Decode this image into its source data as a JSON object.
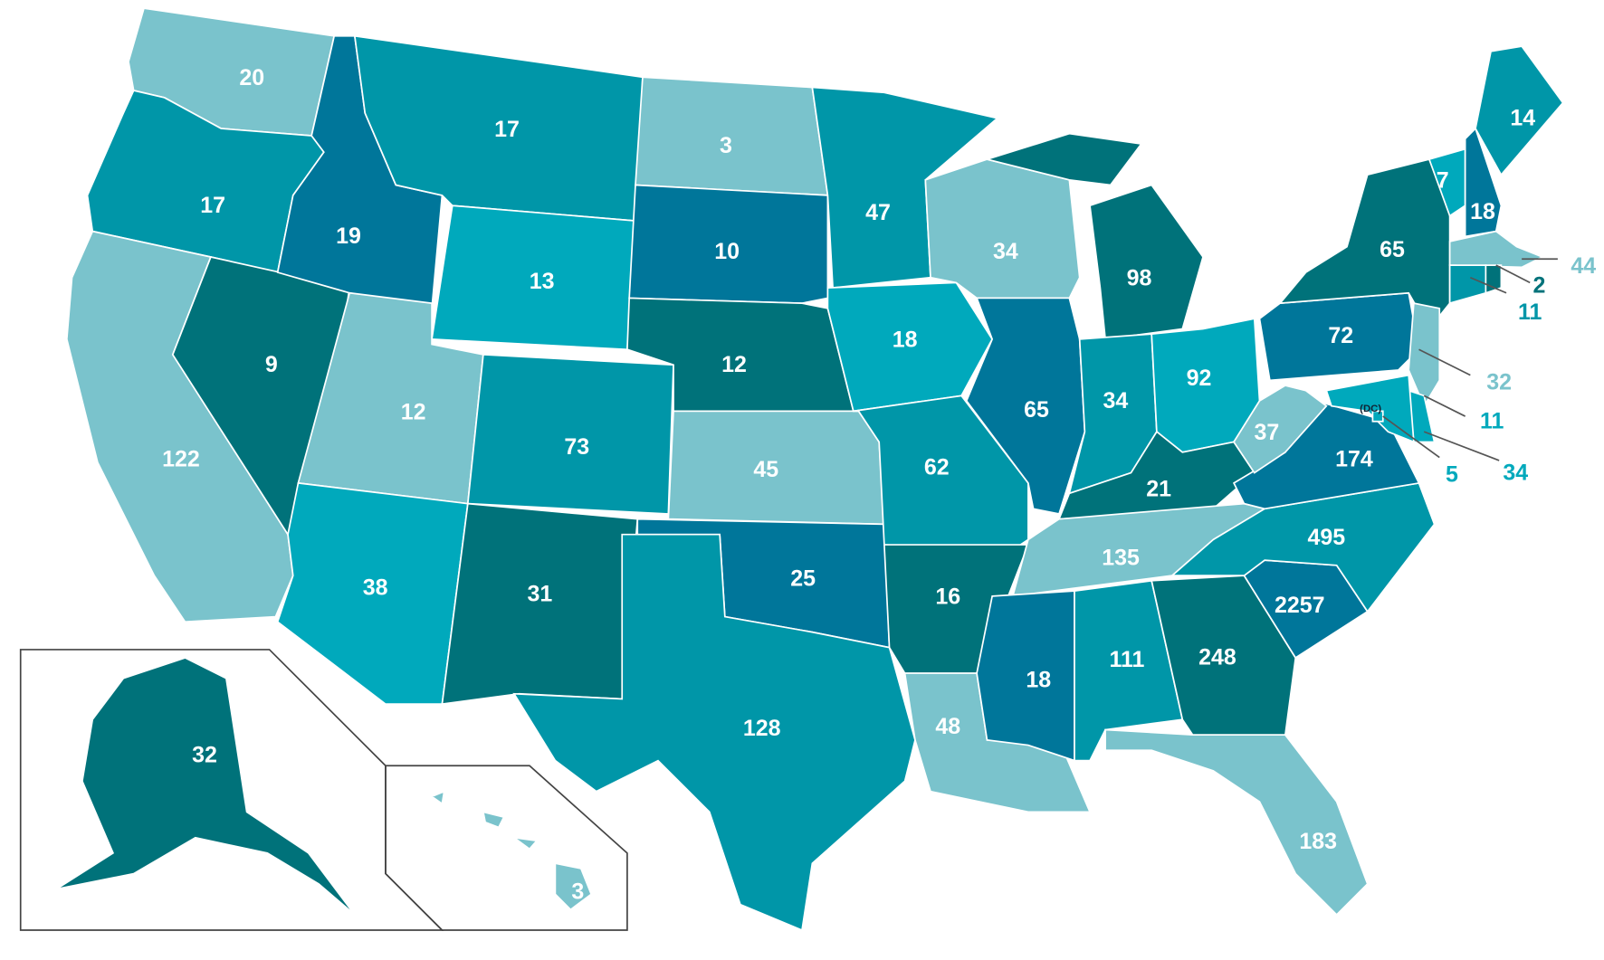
{
  "regions": [
    {
      "value": 20,
      "color": "#7ac3cc"
    },
    {
      "value": 17,
      "color": "#0096a8"
    },
    {
      "value": 122,
      "color": "#7ac3cc"
    },
    {
      "value": 9,
      "color": "#00727a"
    },
    {
      "value": 19,
      "color": "#00769a"
    },
    {
      "value": 17,
      "color": "#0096a8"
    },
    {
      "value": 13,
      "color": "#00a9bc"
    },
    {
      "value": 12,
      "color": "#7ac3cc"
    },
    {
      "value": 38,
      "color": "#00a9bc"
    },
    {
      "value": 73,
      "color": "#0096a8"
    },
    {
      "value": 31,
      "color": "#00727a"
    },
    {
      "value": 3,
      "color": "#7ac3cc"
    },
    {
      "value": 10,
      "color": "#00769a"
    },
    {
      "value": 12,
      "color": "#00727a"
    },
    {
      "value": 45,
      "color": "#7ac3cc"
    },
    {
      "value": 25,
      "color": "#00769a"
    },
    {
      "value": 128,
      "color": "#0096a8"
    },
    {
      "value": 47,
      "color": "#0096a8"
    },
    {
      "value": 18,
      "color": "#00a9bc"
    },
    {
      "value": 62,
      "color": "#0096a8"
    },
    {
      "value": 16,
      "color": "#00727a"
    },
    {
      "value": 48,
      "color": "#7ac3cc"
    },
    {
      "value": 34,
      "color": "#7ac3cc"
    },
    {
      "value": 65,
      "color": "#00769a"
    },
    {
      "value": 98,
      "color": "#00727a"
    },
    {
      "value": 34,
      "color": "#0096a8"
    },
    {
      "value": 92,
      "color": "#00a9bc"
    },
    {
      "value": 21,
      "color": "#00727a"
    },
    {
      "value": 135,
      "color": "#7ac3cc"
    },
    {
      "value": 18,
      "color": "#00769a"
    },
    {
      "value": 111,
      "color": "#0096a8"
    },
    {
      "value": 248,
      "color": "#00727a"
    },
    {
      "value": 183,
      "color": "#7ac3cc"
    },
    {
      "value": 2257,
      "color": "#00769a"
    },
    {
      "value": 495,
      "color": "#0096a8"
    },
    {
      "value": 174,
      "color": "#00769a"
    },
    {
      "value": 37,
      "color": "#7ac3cc"
    },
    {
      "value": 72,
      "color": "#00769a"
    },
    {
      "value": 65,
      "color": "#00727a"
    },
    {
      "value": 7,
      "color": "#00a9bc"
    },
    {
      "value": 18,
      "color": "#00769a"
    },
    {
      "value": 14,
      "color": "#0096a8"
    },
    {
      "value": 44,
      "color": "#7ac3cc"
    },
    {
      "value": 11,
      "color": "#0096a8"
    },
    {
      "value": 2,
      "color": "#00727a"
    },
    {
      "value": 32,
      "color": "#7ac3cc"
    },
    {
      "value": 34,
      "color": "#00a9bc"
    },
    {
      "value": 11,
      "color": "#00a9bc"
    },
    {
      "value": 5,
      "color": "#00a9bc"
    },
    {
      "value": 32,
      "color": "#00727a"
    },
    {
      "value": 3,
      "color": "#7ac3cc"
    }
  ],
  "dc_note": "(DC)"
}
